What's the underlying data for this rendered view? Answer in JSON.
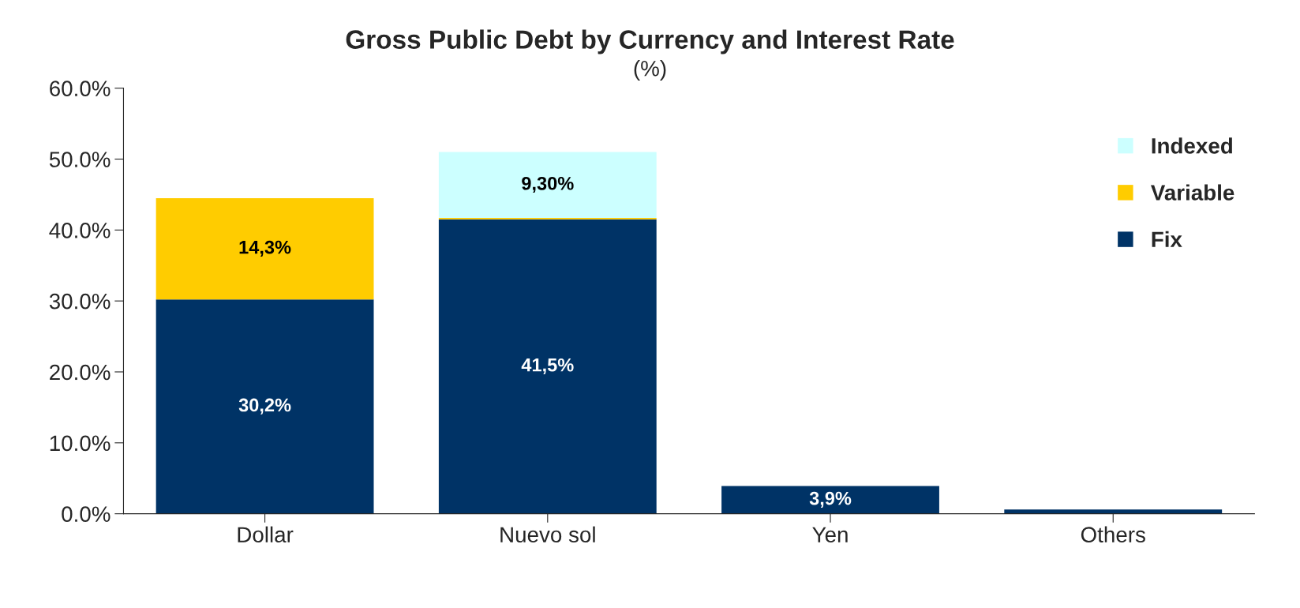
{
  "chart_data": {
    "type": "bar",
    "title": "Gross Public Debt by Currency and Interest Rate",
    "subtitle": "(%)",
    "categories": [
      "Dollar",
      "Nuevo sol",
      "Yen",
      "Others"
    ],
    "stacked": true,
    "series": [
      {
        "name": "Fix",
        "color": "#003366",
        "values": [
          30.2,
          41.5,
          3.9,
          0.6
        ],
        "value_labels": [
          "30,2%",
          "41,5%",
          "3,9%",
          null
        ]
      },
      {
        "name": "Variable",
        "color": "#ffcc00",
        "values": [
          14.3,
          0.2,
          0,
          0
        ],
        "value_labels": [
          "14,3%",
          null,
          null,
          null
        ]
      },
      {
        "name": "Indexed",
        "color": "#ccffff",
        "values": [
          0,
          9.3,
          0,
          0
        ],
        "value_labels": [
          null,
          "9,30%",
          null,
          null
        ]
      }
    ],
    "ylim": [
      0,
      60
    ],
    "yticks": [
      {
        "value": 0,
        "label": "0.0%"
      },
      {
        "value": 10,
        "label": "10.0%"
      },
      {
        "value": 20,
        "label": "20.0%"
      },
      {
        "value": 30,
        "label": "30.0%"
      },
      {
        "value": 40,
        "label": "40.0%"
      },
      {
        "value": 50,
        "label": "50.0%"
      },
      {
        "value": 60,
        "label": "60.0%"
      }
    ],
    "grid": false,
    "legend": "right"
  }
}
